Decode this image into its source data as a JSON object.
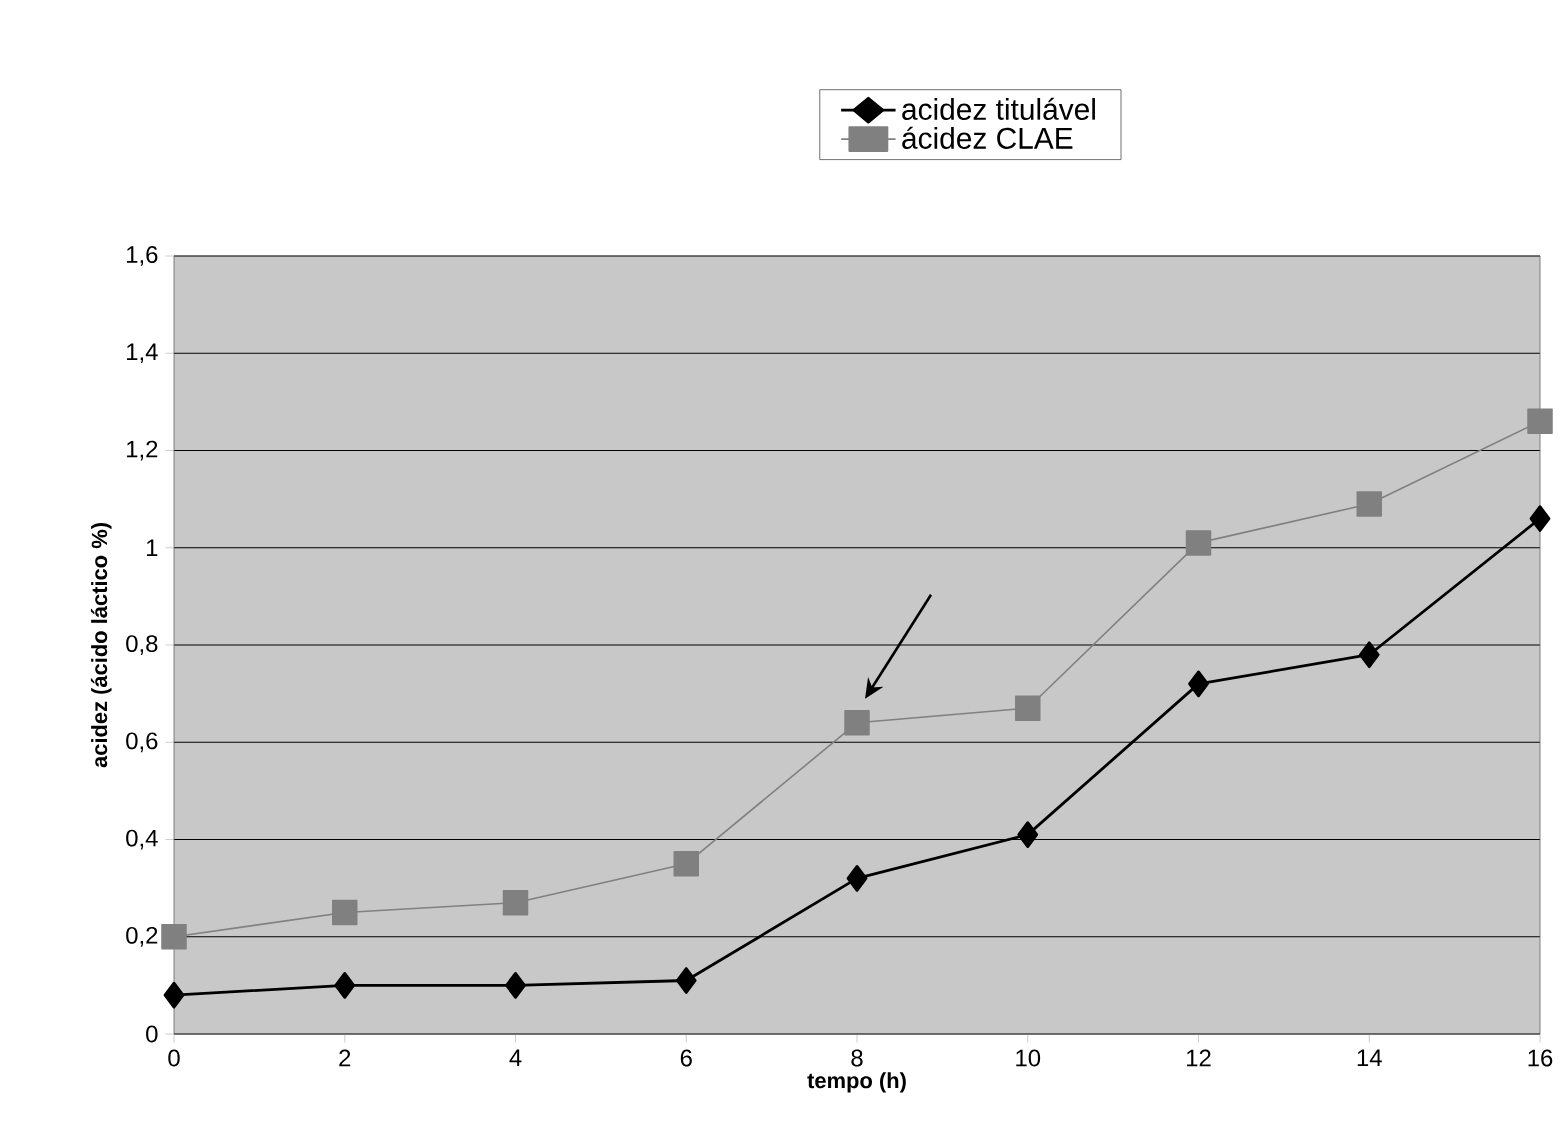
{
  "chart_data": {
    "type": "line",
    "xlabel": "tempo (h)",
    "ylabel": "acidez (ácido láctico %)",
    "x": [
      0,
      2,
      4,
      6,
      8,
      10,
      12,
      14,
      16
    ],
    "series": [
      {
        "name": "acidez titulável",
        "color": "#000000",
        "marker": "diamond",
        "values": [
          0.08,
          0.1,
          0.1,
          0.11,
          0.32,
          0.41,
          0.72,
          0.78,
          1.06
        ]
      },
      {
        "name": "ácidez CLAE",
        "color": "#808080",
        "marker": "square",
        "values": [
          0.2,
          0.25,
          0.27,
          0.35,
          0.64,
          0.67,
          1.01,
          1.09,
          1.26
        ]
      }
    ],
    "xlim": [
      0,
      16
    ],
    "xticks": [
      0,
      2,
      4,
      6,
      8,
      10,
      12,
      14,
      16
    ],
    "ylim": [
      0,
      1.6
    ],
    "yticks": [
      0,
      {
        "value": 0.2,
        "label": "0,2"
      },
      {
        "value": 0.4,
        "label": "0,4"
      },
      {
        "value": 0.6,
        "label": "0,6"
      },
      {
        "value": 0.8,
        "label": "0,8"
      },
      1,
      {
        "value": 1.2,
        "label": "1,2"
      },
      {
        "value": 1.4,
        "label": "1,4"
      },
      {
        "value": 1.6,
        "label": "1,6"
      }
    ],
    "grid": "y",
    "legend": "top",
    "line_style": "solid"
  }
}
